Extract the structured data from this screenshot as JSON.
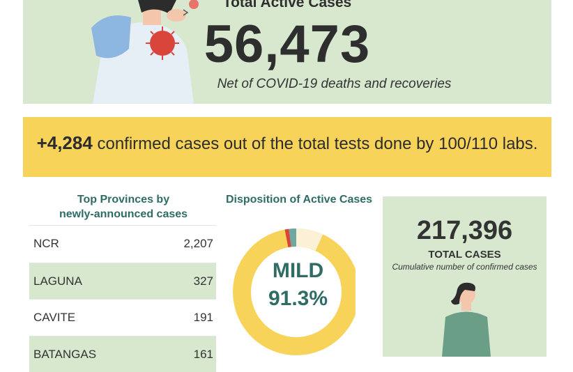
{
  "active_cases": {
    "title": "Total Active Cases",
    "value": "56,473",
    "subtitle": "Net of COVID-19 deaths and recoveries"
  },
  "confirmed_banner": {
    "count": "+4,284",
    "text": "confirmed cases out of the total tests done by 100/110 labs."
  },
  "provinces": {
    "title_line1": "Top Provinces by",
    "title_line2": "newly-announced cases",
    "rows": [
      {
        "name": "NCR",
        "value": "2,207"
      },
      {
        "name": "LAGUNA",
        "value": "327"
      },
      {
        "name": "CAVITE",
        "value": "191"
      },
      {
        "name": "BATANGAS",
        "value": "161"
      }
    ]
  },
  "disposition": {
    "title": "Disposition of Active Cases",
    "label": "MILD",
    "value": "91.3%",
    "mild_fraction": 0.913
  },
  "total_cases": {
    "value": "217,396",
    "label": "TOTAL CASES",
    "subtitle": "Cumulative number of confirmed cases"
  },
  "colors": {
    "banner_green": "#d8e8cf",
    "banner_yellow": "#f8d35a",
    "teal_text": "#2f6c66",
    "donut_mild": "#f8d35a",
    "donut_severe": "#d9443b",
    "donut_critical": "#6fa8a0",
    "donut_asymptomatic": "#fbf1d6"
  }
}
